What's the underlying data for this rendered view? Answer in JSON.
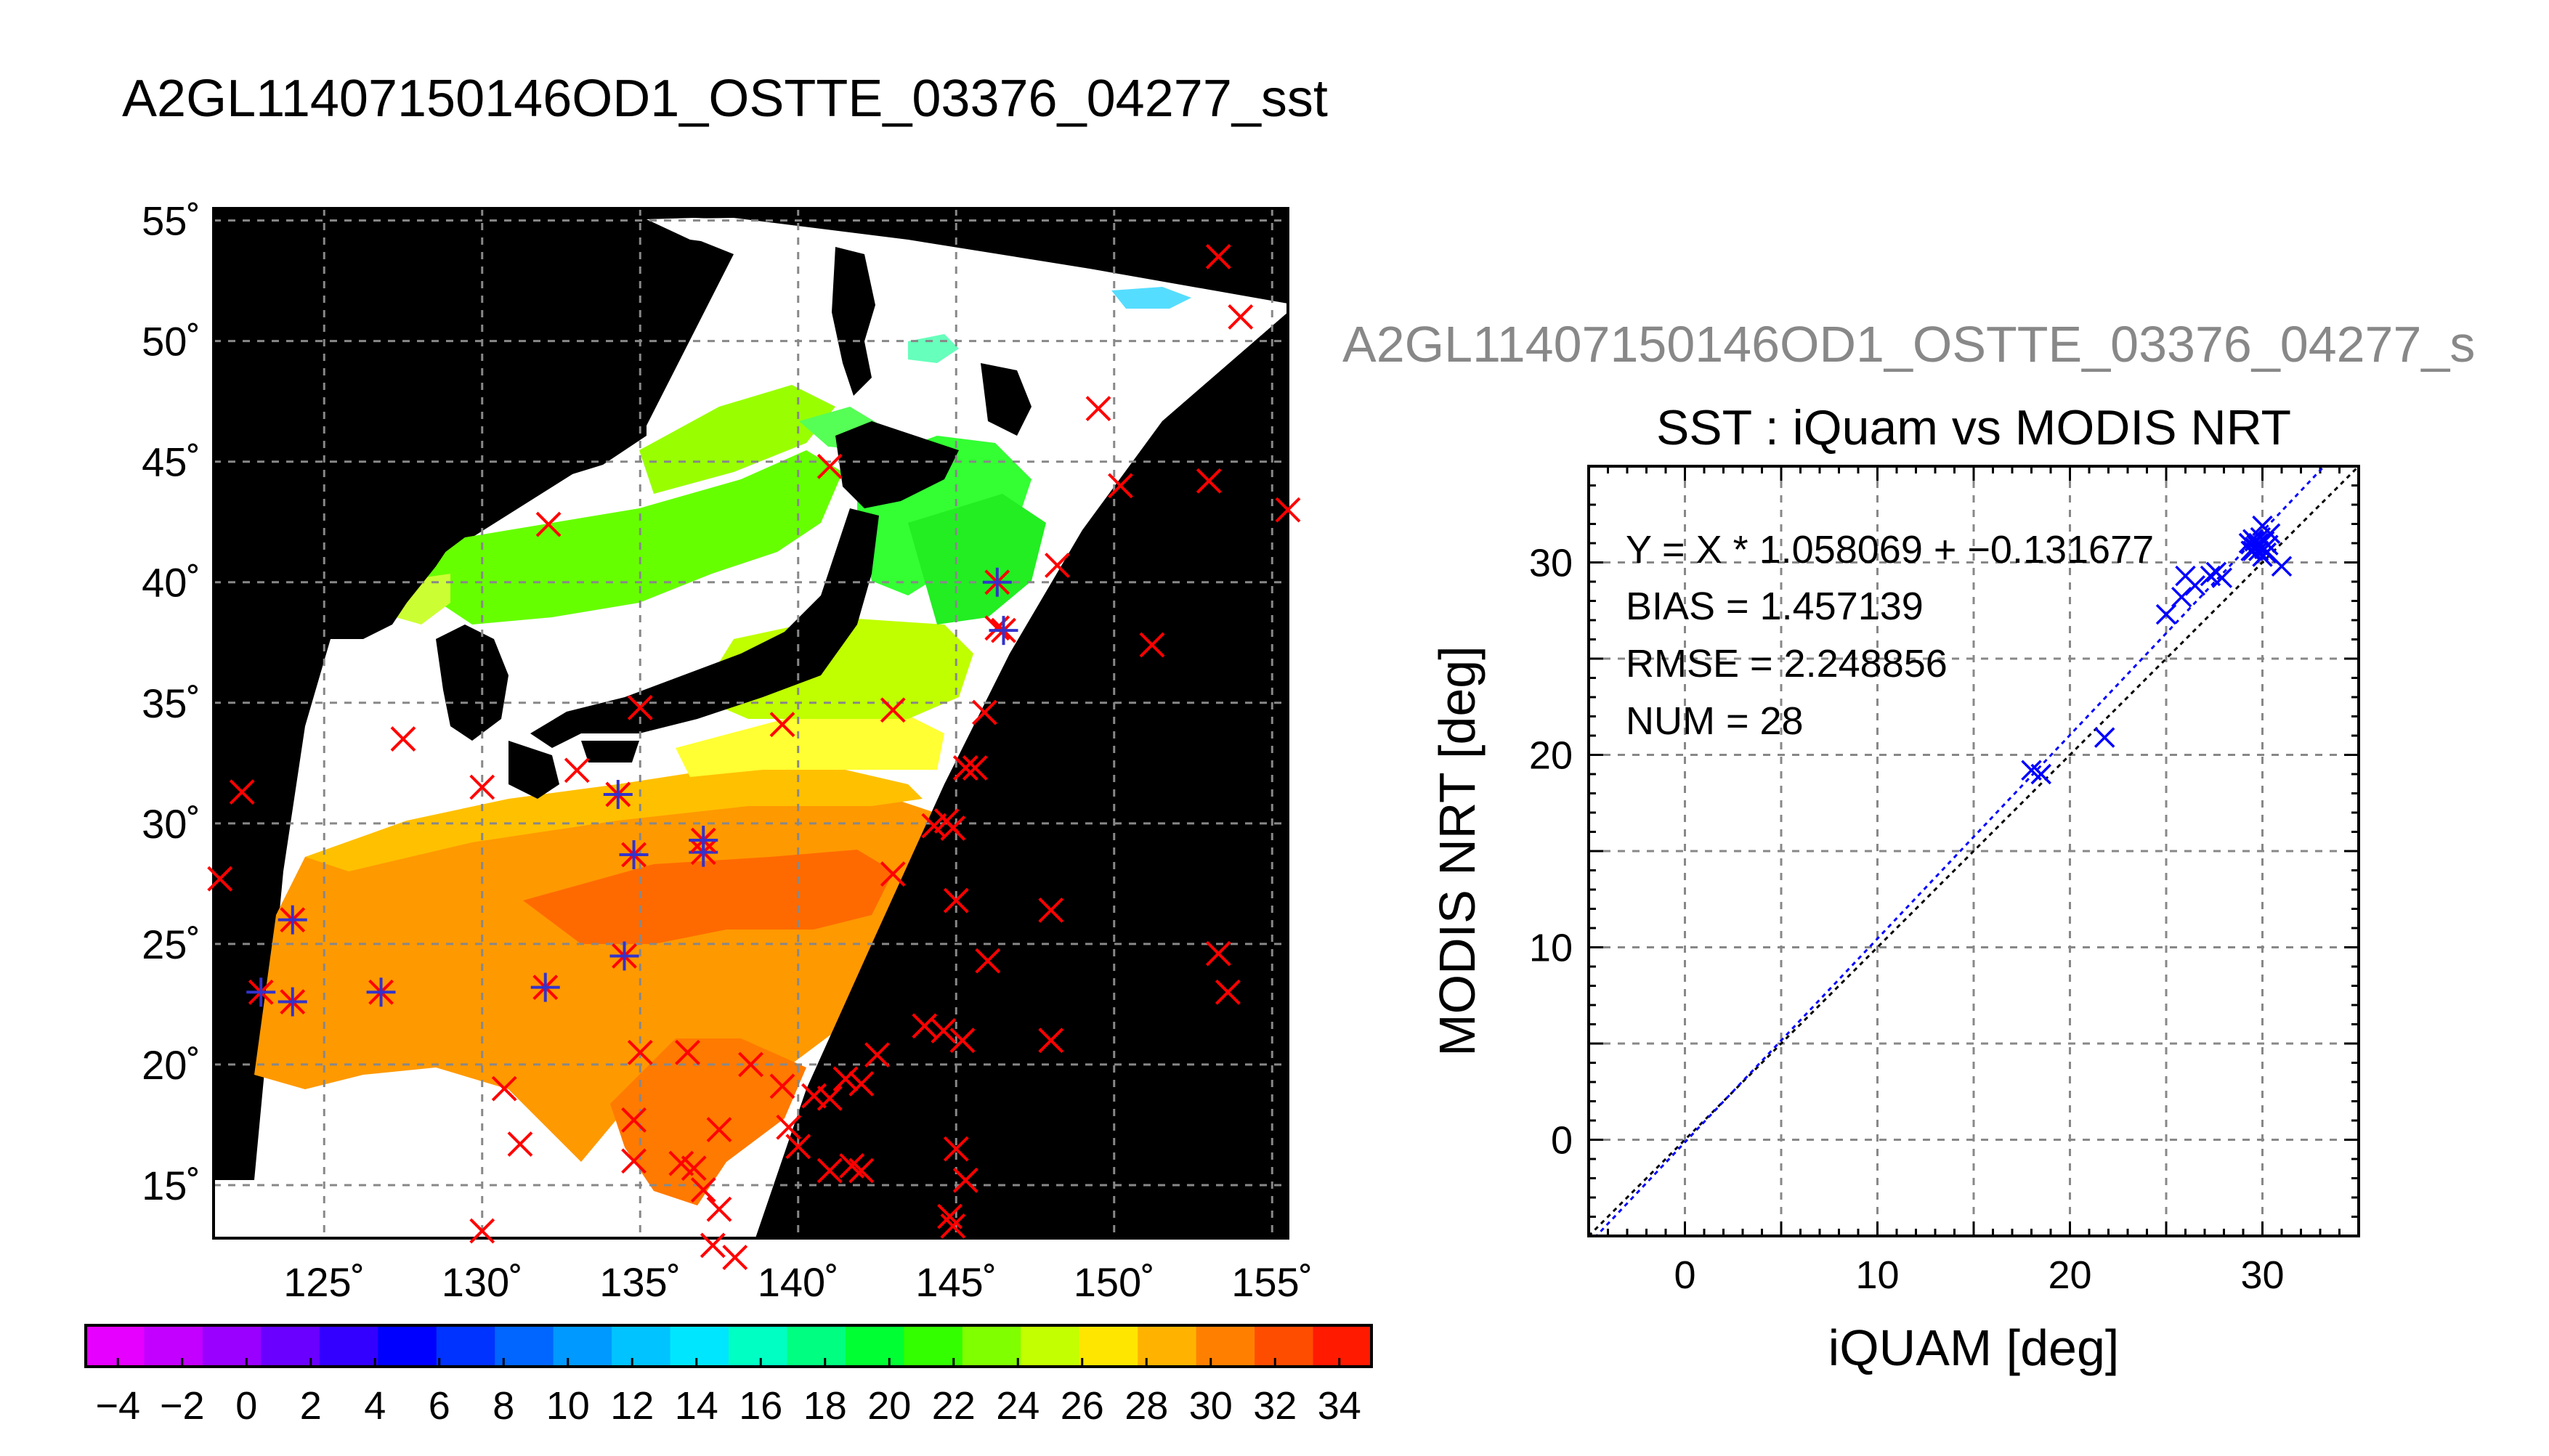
{
  "map_title": "A2GL11407150146OD1_OSTTE_03376_04277_sst",
  "scatter_top_title": "A2GL11407150146OD1_OSTTE_03376_04277_s",
  "chart_data": [
    {
      "type": "heatmap",
      "title": "A2GL11407150146OD1_OSTTE_03376_04277_sst",
      "description_units": "sea surface temperature (deg C) on lon/lat map",
      "x_ticks": [
        "125˚",
        "130˚",
        "135˚",
        "140˚",
        "145˚",
        "150˚",
        "155˚"
      ],
      "y_ticks": [
        "55˚",
        "50˚",
        "45˚",
        "40˚",
        "35˚",
        "30˚",
        "25˚",
        "20˚",
        "15˚"
      ],
      "xlim": [
        121.5,
        155.5
      ],
      "ylim": [
        12.8,
        55.5
      ],
      "grid": true,
      "colorbar": {
        "range": [
          -5,
          35
        ],
        "tick_labels": [
          "−4",
          "−2",
          "0",
          "2",
          "4",
          "6",
          "8",
          "10",
          "12",
          "14",
          "16",
          "18",
          "20",
          "22",
          "24",
          "26",
          "28",
          "30",
          "32",
          "34"
        ],
        "tick_values": [
          -4,
          -2,
          0,
          2,
          4,
          6,
          8,
          10,
          12,
          14,
          16,
          18,
          20,
          22,
          24,
          26,
          28,
          30,
          32,
          34
        ],
        "colors": [
          "#e600ff",
          "#c300ff",
          "#9a00ff",
          "#6a00ff",
          "#3300ff",
          "#0000ff",
          "#0033ff",
          "#0066ff",
          "#0099ff",
          "#00c3ff",
          "#00e6ff",
          "#00ffc3",
          "#00ff80",
          "#00ff33",
          "#33ff00",
          "#80ff00",
          "#c3ff00",
          "#ffe600",
          "#ffb300",
          "#ff8000",
          "#ff4d00",
          "#ff1a00"
        ]
      },
      "buoy_matches": [
        [
          124.0,
          26.0
        ],
        [
          123.0,
          23.0
        ],
        [
          124.0,
          22.6
        ],
        [
          126.8,
          23.0
        ],
        [
          132.0,
          23.2
        ],
        [
          134.5,
          24.5
        ],
        [
          134.3,
          31.2
        ],
        [
          134.8,
          28.7
        ],
        [
          137.0,
          28.8
        ],
        [
          137.0,
          29.3
        ],
        [
          146.3,
          40.0
        ],
        [
          146.5,
          38.0
        ]
      ],
      "buoy_unmatched": [
        [
          153.3,
          53.5
        ],
        [
          154.0,
          51.0
        ],
        [
          149.5,
          47.2
        ],
        [
          141.0,
          44.8
        ],
        [
          150.2,
          44.0
        ],
        [
          153.0,
          44.2
        ],
        [
          155.5,
          43.0
        ],
        [
          132.1,
          42.4
        ],
        [
          148.2,
          40.7
        ],
        [
          151.2,
          37.4
        ],
        [
          146.3,
          38.1
        ],
        [
          143.0,
          34.7
        ],
        [
          145.9,
          34.6
        ],
        [
          139.5,
          34.1
        ],
        [
          135.0,
          34.8
        ],
        [
          127.5,
          33.5
        ],
        [
          133.0,
          32.2
        ],
        [
          145.3,
          32.3
        ],
        [
          145.6,
          32.3
        ],
        [
          122.4,
          31.3
        ],
        [
          130.0,
          31.5
        ],
        [
          144.7,
          30.1
        ],
        [
          144.3,
          29.9
        ],
        [
          144.9,
          29.8
        ],
        [
          145.0,
          26.8
        ],
        [
          143.0,
          27.9
        ],
        [
          148.0,
          26.4
        ],
        [
          121.7,
          27.7
        ],
        [
          146.0,
          24.3
        ],
        [
          153.3,
          24.6
        ],
        [
          153.6,
          23.0
        ],
        [
          144.0,
          21.6
        ],
        [
          144.6,
          21.4
        ],
        [
          145.2,
          21.0
        ],
        [
          148.0,
          21.0
        ],
        [
          142.5,
          20.4
        ],
        [
          141.5,
          19.4
        ],
        [
          142.0,
          19.2
        ],
        [
          135.0,
          20.5
        ],
        [
          136.5,
          20.5
        ],
        [
          138.5,
          20.0
        ],
        [
          139.5,
          19.1
        ],
        [
          140.5,
          18.7
        ],
        [
          141.0,
          18.6
        ],
        [
          130.7,
          19.0
        ],
        [
          131.2,
          16.7
        ],
        [
          134.8,
          17.7
        ],
        [
          137.5,
          17.3
        ],
        [
          139.7,
          17.4
        ],
        [
          140.0,
          16.6
        ],
        [
          134.8,
          16.0
        ],
        [
          136.3,
          15.9
        ],
        [
          136.7,
          15.7
        ],
        [
          137.0,
          14.8
        ],
        [
          137.5,
          14.0
        ],
        [
          141.0,
          15.6
        ],
        [
          142.0,
          15.6
        ],
        [
          141.7,
          15.8
        ],
        [
          145.0,
          16.5
        ],
        [
          145.3,
          15.2
        ],
        [
          144.8,
          13.7
        ],
        [
          144.9,
          13.3
        ],
        [
          137.3,
          12.5
        ],
        [
          138.0,
          12.0
        ],
        [
          130.0,
          13.1
        ]
      ]
    },
    {
      "type": "scatter",
      "title": "SST : iQuam vs MODIS NRT",
      "xlabel": "iQUAM [deg]",
      "ylabel": "MODIS NRT [deg]",
      "xlim": [
        -5,
        35
      ],
      "ylim": [
        -5,
        35
      ],
      "x_ticks": [
        "0",
        "10",
        "20",
        "30"
      ],
      "y_ticks": [
        "0",
        "10",
        "20",
        "30"
      ],
      "grid": true,
      "stats": {
        "fit_label": "Y = X * 1.058069 + −0.131677",
        "bias_label": "BIAS = 1.457139",
        "rmse_label": "RMSE = 2.248856",
        "num_label": "NUM = 28",
        "slope": 1.058069,
        "intercept": -0.131677
      },
      "points": [
        [
          18.0,
          19.2
        ],
        [
          18.5,
          19.0
        ],
        [
          21.8,
          20.9
        ],
        [
          25.0,
          27.3
        ],
        [
          25.8,
          28.2
        ],
        [
          26.0,
          29.3
        ],
        [
          26.5,
          28.8
        ],
        [
          27.3,
          29.3
        ],
        [
          27.6,
          29.5
        ],
        [
          27.9,
          29.2
        ],
        [
          29.3,
          31.0
        ],
        [
          29.4,
          30.6
        ],
        [
          29.5,
          31.2
        ],
        [
          29.6,
          30.8
        ],
        [
          29.7,
          30.9
        ],
        [
          29.8,
          30.6
        ],
        [
          29.9,
          31.3
        ],
        [
          30.0,
          31.9
        ],
        [
          30.1,
          30.7
        ],
        [
          30.2,
          30.5
        ],
        [
          30.3,
          30.9
        ],
        [
          30.4,
          31.5
        ],
        [
          31.0,
          29.8
        ],
        [
          29.6,
          31.1
        ],
        [
          29.8,
          31.0
        ],
        [
          30.0,
          30.3
        ],
        [
          29.5,
          30.6
        ],
        [
          30.1,
          31.1
        ]
      ],
      "point_color": "#0000ff",
      "fit_line_color": "#0000ff",
      "identity_line_color": "#000000"
    }
  ]
}
